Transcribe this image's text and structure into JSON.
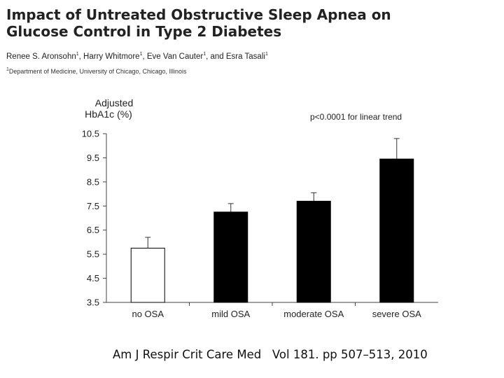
{
  "header": {
    "title_line1": "Impact of Untreated Obstructive Sleep Apnea on",
    "title_line2": "Glucose Control in Type 2 Diabetes",
    "authors": [
      {
        "name": "Renee S. Aronsohn",
        "aff": "1"
      },
      {
        "name": "Harry Whitmore",
        "aff": "1"
      },
      {
        "name": "Eve Van Cauter",
        "aff": "1"
      },
      {
        "name": "Esra Tasali",
        "aff": "1"
      }
    ],
    "affiliation_mark": "1",
    "affiliation": "Department of Medicine, University of Chicago, Chicago, Illinois"
  },
  "citation": "Am J Respir Crit Care Med   Vol 181. pp 507–513, 2010",
  "chart_data": {
    "type": "bar",
    "ylabel_line1": "Adjusted",
    "ylabel_line2": "HbA1c (%)",
    "annotation": "p<0.0001 for linear trend",
    "categories": [
      "no OSA",
      "mild OSA",
      "moderate OSA",
      "severe OSA"
    ],
    "values": [
      5.75,
      7.25,
      7.7,
      9.45
    ],
    "error_upper": [
      6.2,
      7.6,
      8.05,
      10.3
    ],
    "bar_fills": [
      "#ffffff",
      "#000000",
      "#000000",
      "#000000"
    ],
    "ylim": [
      3.5,
      10.5
    ],
    "yticks": [
      "3.5",
      "4.5",
      "5.5",
      "6.5",
      "7.5",
      "8.5",
      "9.5",
      "10.5"
    ],
    "grid": false
  }
}
